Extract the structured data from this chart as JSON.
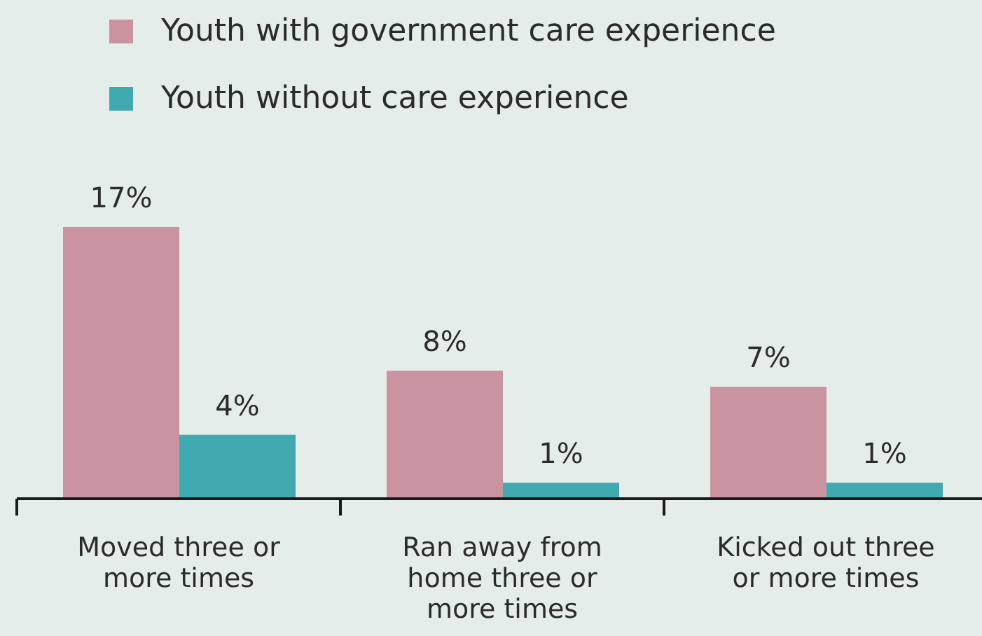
{
  "chart_data": {
    "type": "bar",
    "categories": [
      "Moved three or more times",
      "Ran away from home three or more times",
      "Kicked out three or more times"
    ],
    "series": [
      {
        "name": "Youth with government care experience",
        "color": "#c9939f",
        "values": [
          17,
          8,
          7
        ],
        "value_labels": [
          "17%",
          "8%",
          "7%"
        ]
      },
      {
        "name": "Youth without care experience",
        "color": "#41a9b0",
        "values": [
          4,
          1,
          1
        ],
        "value_labels": [
          "4%",
          "1%",
          "1%"
        ]
      }
    ],
    "legend": "top"
  }
}
